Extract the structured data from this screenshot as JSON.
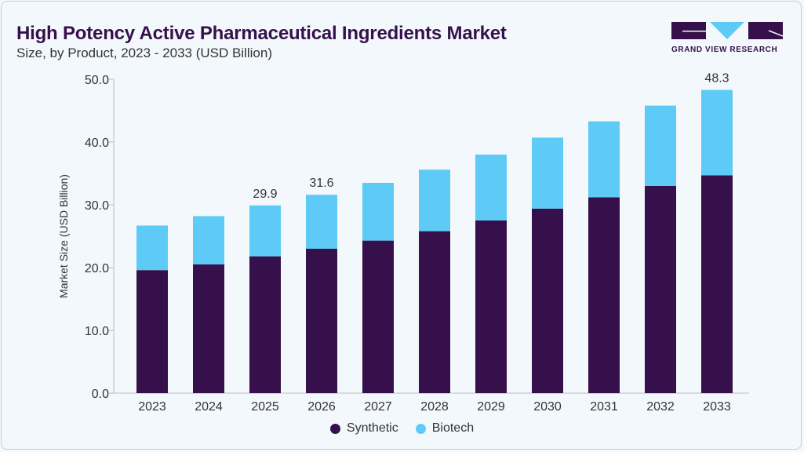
{
  "header": {
    "title": "High Potency Active Pharmaceutical Ingredients Market",
    "subtitle": "Size, by Product, 2023 - 2033 (USD Billion)"
  },
  "logo": {
    "text": "GRAND VIEW RESEARCH"
  },
  "chart_data": {
    "type": "bar",
    "stacked": true,
    "title": "High Potency Active Pharmaceutical Ingredients Market",
    "subtitle": "Size, by Product, 2023 - 2033 (USD Billion)",
    "xlabel": "",
    "ylabel": "Market Size (USD Billion)",
    "ylim": [
      0,
      50
    ],
    "yticks": [
      "0.0",
      "10.0",
      "20.0",
      "30.0",
      "40.0",
      "50.0"
    ],
    "grid": false,
    "legend_position": "bottom",
    "categories": [
      "2023",
      "2024",
      "2025",
      "2026",
      "2027",
      "2028",
      "2029",
      "2030",
      "2031",
      "2032",
      "2033"
    ],
    "series": [
      {
        "name": "Synthetic",
        "color": "#36104a",
        "values": [
          19.6,
          20.5,
          21.8,
          23.0,
          24.3,
          25.8,
          27.5,
          29.4,
          31.2,
          33.0,
          34.7
        ]
      },
      {
        "name": "Biotech",
        "color": "#5ecbf7",
        "values": [
          7.1,
          7.7,
          8.1,
          8.6,
          9.2,
          9.8,
          10.5,
          11.3,
          12.1,
          12.8,
          13.6
        ]
      }
    ],
    "data_labels": {
      "2025": "29.9",
      "2026": "31.6",
      "2033": "48.3"
    }
  }
}
